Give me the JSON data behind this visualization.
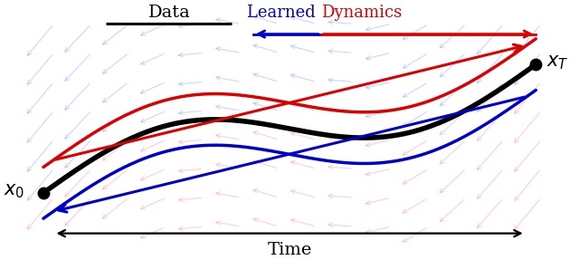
{
  "fig_width": 6.4,
  "fig_height": 2.87,
  "dpi": 100,
  "xlim": [
    -0.3,
    10.5
  ],
  "ylim": [
    -1.3,
    2.3
  ],
  "bg_color": "#ffffff",
  "black_lw": 4.0,
  "red_lw": 2.5,
  "blue_lw": 2.5,
  "data_label": "Data",
  "time_label": "Time",
  "learned_text": "Learned ",
  "dynamics_text": "Dynamics"
}
